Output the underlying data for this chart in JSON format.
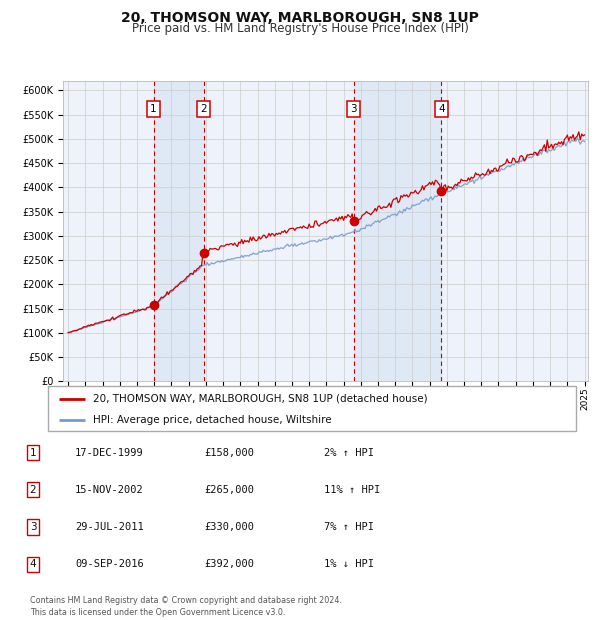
{
  "title": "20, THOMSON WAY, MARLBOROUGH, SN8 1UP",
  "subtitle": "Price paid vs. HM Land Registry's House Price Index (HPI)",
  "title_fontsize": 10,
  "subtitle_fontsize": 8.5,
  "ylim": [
    0,
    620000
  ],
  "yticks": [
    0,
    50000,
    100000,
    150000,
    200000,
    250000,
    300000,
    350000,
    400000,
    450000,
    500000,
    550000,
    600000
  ],
  "ytick_labels": [
    "£0",
    "£50K",
    "£100K",
    "£150K",
    "£200K",
    "£250K",
    "£300K",
    "£350K",
    "£400K",
    "£450K",
    "£500K",
    "£550K",
    "£600K"
  ],
  "x_start_year": 1995,
  "x_end_year": 2025,
  "hpi_color": "#7799cc",
  "price_color": "#cc0000",
  "bg_color": "#ffffff",
  "plot_bg_color": "#eef2fa",
  "grid_color": "#cccccc",
  "sale_dates": [
    "1999-12-17",
    "2002-11-15",
    "2011-07-29",
    "2016-09-09"
  ],
  "sale_prices": [
    158000,
    265000,
    330000,
    392000
  ],
  "sale_labels": [
    "1",
    "2",
    "3",
    "4"
  ],
  "sale_date_strings": [
    "17-DEC-1999",
    "15-NOV-2002",
    "29-JUL-2011",
    "09-SEP-2016"
  ],
  "sale_price_strings": [
    "£158,000",
    "£265,000",
    "£330,000",
    "£392,000"
  ],
  "sale_hpi_rel": [
    "2% ↑ HPI",
    "11% ↑ HPI",
    "7% ↑ HPI",
    "1% ↓ HPI"
  ],
  "legend_line1": "20, THOMSON WAY, MARLBOROUGH, SN8 1UP (detached house)",
  "legend_line2": "HPI: Average price, detached house, Wiltshire",
  "footer": "Contains HM Land Registry data © Crown copyright and database right 2024.\nThis data is licensed under the Open Government Licence v3.0.",
  "dashed_line_color": "#cc0000",
  "shading_color": "#dce8f5"
}
